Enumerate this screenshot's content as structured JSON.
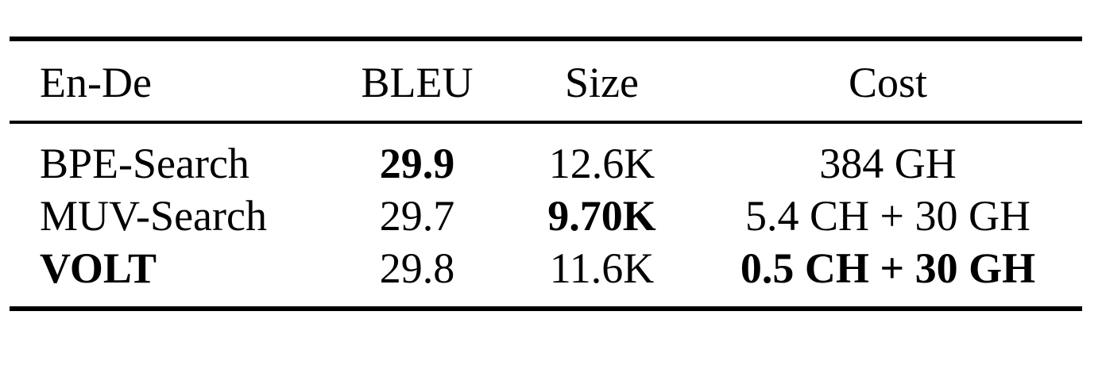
{
  "table": {
    "headers": [
      "En-De",
      "BLEU",
      "Size",
      "Cost"
    ],
    "rows": [
      {
        "name": "BPE-Search",
        "bleu": "29.9",
        "size": "12.6K",
        "cost": "384 GH"
      },
      {
        "name": "MUV-Search",
        "bleu": "29.7",
        "size": "9.70K",
        "cost": "5.4 CH + 30 GH"
      },
      {
        "name": "VOLT",
        "bleu": "29.8",
        "size": "11.6K",
        "cost": "0.5 CH + 30 GH"
      }
    ]
  }
}
